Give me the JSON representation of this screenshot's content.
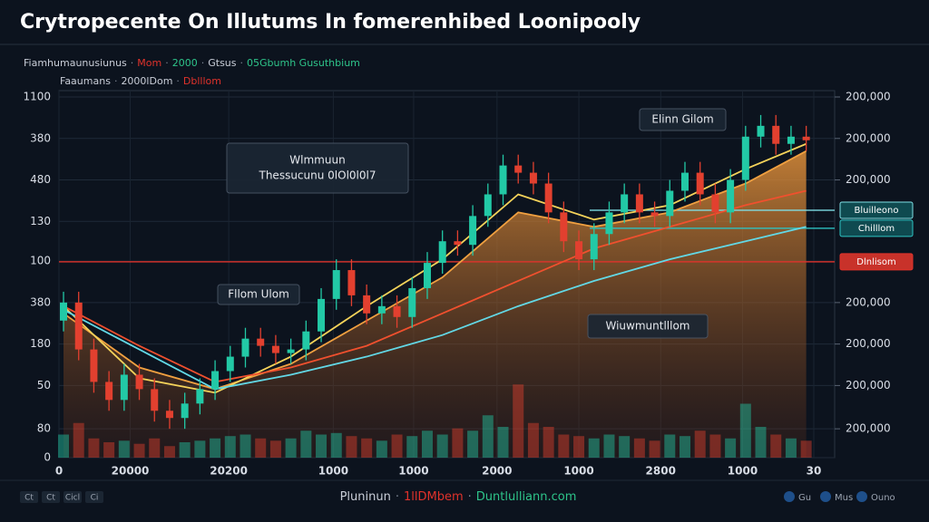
{
  "chart_data": {
    "type": "candlestick",
    "title": "Crytropecente On Illutums In fomerenhibed Loonipooly",
    "legend_rows": [
      [
        {
          "text": "Fiamhumaunusiunus",
          "color": "#c9ced8"
        },
        {
          "text": "Mom",
          "color": "#e0322b"
        },
        {
          "text": "2000",
          "color": "#2ec48a"
        },
        {
          "text": "Gtsus",
          "color": "#c9ced8"
        },
        {
          "text": "05Gbumh Gusuthbium",
          "color": "#2ec48a"
        }
      ],
      [
        {
          "text": "Faaumans",
          "color": "#c9ced8"
        },
        {
          "text": "2000lDom",
          "color": "#c9ced8"
        },
        {
          "text": "Dblllom",
          "color": "#e0322b"
        }
      ]
    ],
    "xlim": [
      -0.3,
      49.5
    ],
    "xticks": [
      {
        "value": -0.3,
        "label": "0"
      },
      {
        "value": 4.4,
        "label": "20000"
      },
      {
        "value": 10.9,
        "label": "20200"
      },
      {
        "value": 17.8,
        "label": "1000"
      },
      {
        "value": 23.1,
        "label": "1000"
      },
      {
        "value": 28.6,
        "label": "2000"
      },
      {
        "value": 34,
        "label": "1000"
      },
      {
        "value": 39.4,
        "label": "2800"
      },
      {
        "value": 44.8,
        "label": "1000"
      },
      {
        "value": 49.5,
        "label": "30"
      }
    ],
    "ylim": [
      0,
      100
    ],
    "yticks": [
      {
        "value": 100,
        "label": "1100"
      },
      {
        "value": 88.5,
        "label": "380"
      },
      {
        "value": 77,
        "label": "480"
      },
      {
        "value": 65.5,
        "label": "130"
      },
      {
        "value": 54.5,
        "label": "100"
      },
      {
        "value": 43,
        "label": "380"
      },
      {
        "value": 31.5,
        "label": "180"
      },
      {
        "value": 20,
        "label": "50"
      },
      {
        "value": 8,
        "label": "80"
      },
      0
    ],
    "y2lim": [
      0,
      100
    ],
    "y2ticks": [
      {
        "value": 100,
        "label": "200,000"
      },
      {
        "value": 88.5,
        "label": "200,000"
      },
      {
        "value": 77,
        "label": "200,000"
      },
      {
        "value": 43,
        "label": "200,000"
      },
      {
        "value": 31.5,
        "label": "200,000"
      },
      {
        "value": 20,
        "label": "200,000"
      },
      {
        "value": 8,
        "label": "200,000"
      }
    ],
    "grid": true,
    "colors": {
      "up": "#22c9a6",
      "down": "#e2402f"
    },
    "open": [
      38,
      43,
      30,
      21,
      16,
      23,
      19,
      13,
      11,
      15,
      19,
      24,
      28,
      33,
      31,
      29,
      30,
      35,
      44,
      52,
      45,
      40,
      42,
      39,
      47,
      54,
      60,
      59,
      67,
      73,
      81,
      79,
      76,
      68,
      60,
      55,
      62,
      68,
      73,
      68,
      67,
      74,
      79,
      73,
      68,
      77,
      89,
      92,
      87,
      89
    ],
    "high": [
      46,
      46,
      33,
      24,
      26,
      26,
      22,
      16,
      18,
      22,
      27,
      31,
      36,
      36,
      34,
      33,
      38,
      47,
      55,
      55,
      48,
      45,
      45,
      50,
      57,
      63,
      63,
      70,
      76,
      84,
      84,
      82,
      79,
      71,
      63,
      65,
      71,
      76,
      76,
      71,
      77,
      82,
      82,
      76,
      80,
      92,
      95,
      95,
      92,
      92
    ],
    "low": [
      35,
      27,
      18,
      13,
      13,
      16,
      10,
      8,
      8,
      12,
      16,
      21,
      25,
      28,
      26,
      26,
      27,
      32,
      41,
      42,
      37,
      37,
      36,
      36,
      44,
      51,
      56,
      56,
      64,
      70,
      76,
      73,
      65,
      57,
      52,
      52,
      59,
      65,
      65,
      64,
      64,
      71,
      70,
      65,
      65,
      74,
      86,
      84,
      84,
      85
    ],
    "close": [
      43,
      30,
      21,
      16,
      23,
      19,
      13,
      11,
      15,
      19,
      24,
      28,
      33,
      31,
      29,
      30,
      35,
      44,
      52,
      45,
      40,
      42,
      39,
      47,
      54,
      60,
      59,
      67,
      73,
      81,
      79,
      76,
      68,
      60,
      55,
      62,
      68,
      73,
      68,
      67,
      74,
      79,
      73,
      68,
      77,
      89,
      92,
      87,
      89,
      88
    ],
    "vlim": [
      0,
      100
    ],
    "volume": [
      30,
      45,
      25,
      20,
      22,
      18,
      25,
      15,
      20,
      22,
      25,
      28,
      30,
      25,
      22,
      25,
      35,
      30,
      32,
      28,
      25,
      22,
      30,
      28,
      35,
      30,
      38,
      35,
      55,
      40,
      95,
      45,
      40,
      30,
      28,
      25,
      30,
      28,
      25,
      22,
      30,
      28,
      35,
      30,
      25,
      70,
      40,
      30,
      25,
      22
    ],
    "line_x": [
      0,
      5,
      10,
      15,
      20,
      25,
      30,
      35,
      40,
      45,
      49
    ],
    "series": [
      {
        "color": "#f0a040",
        "fill": true,
        "values": [
          40,
          25,
          19,
          26,
          38,
          50,
          68,
          64,
          68,
          76,
          85
        ]
      },
      {
        "color": "#f5d35a",
        "values": [
          42,
          22,
          18,
          28,
          42,
          55,
          73,
          66,
          70,
          80,
          87
        ]
      },
      {
        "color": "#f0502e",
        "values": [
          42,
          31,
          21,
          25,
          31,
          40,
          49,
          58,
          64,
          70,
          74
        ]
      },
      {
        "color": "#62d8e6",
        "values": [
          41,
          30,
          19,
          23,
          28,
          34,
          42,
          49,
          55,
          60,
          64
        ]
      }
    ],
    "levels": [
      {
        "label": "Bluilleono",
        "value": 68.6,
        "color": "#7fe0e6"
      },
      {
        "label": "Chilllom",
        "value": 63.6,
        "color": "#2ec4c4"
      },
      {
        "label": "Dlnlisom",
        "value": 54.3,
        "color": "#e0322b"
      }
    ],
    "annotations": [
      {
        "lines": [
          "Wlmmuun",
          "Thessucunu 0lOl0l0l7"
        ]
      },
      {
        "lines": [
          "Elinn Gilom"
        ]
      },
      {
        "lines": [
          "Fllom Ulom"
        ]
      },
      {
        "lines": [
          "Wiuwmuntlllom"
        ]
      }
    ],
    "footer": [
      {
        "text": "Pluninun",
        "color": "#c9ced8"
      },
      {
        "text": "1llDMbem",
        "color": "#e0322b"
      },
      {
        "text": "Duntlulliann.com",
        "color": "#2ec48a"
      }
    ],
    "footer_left": [
      "Ct",
      "Ct",
      "Cicl",
      "Ci"
    ],
    "footer_right": [
      "Gu",
      "Mus",
      "Ouno"
    ]
  }
}
